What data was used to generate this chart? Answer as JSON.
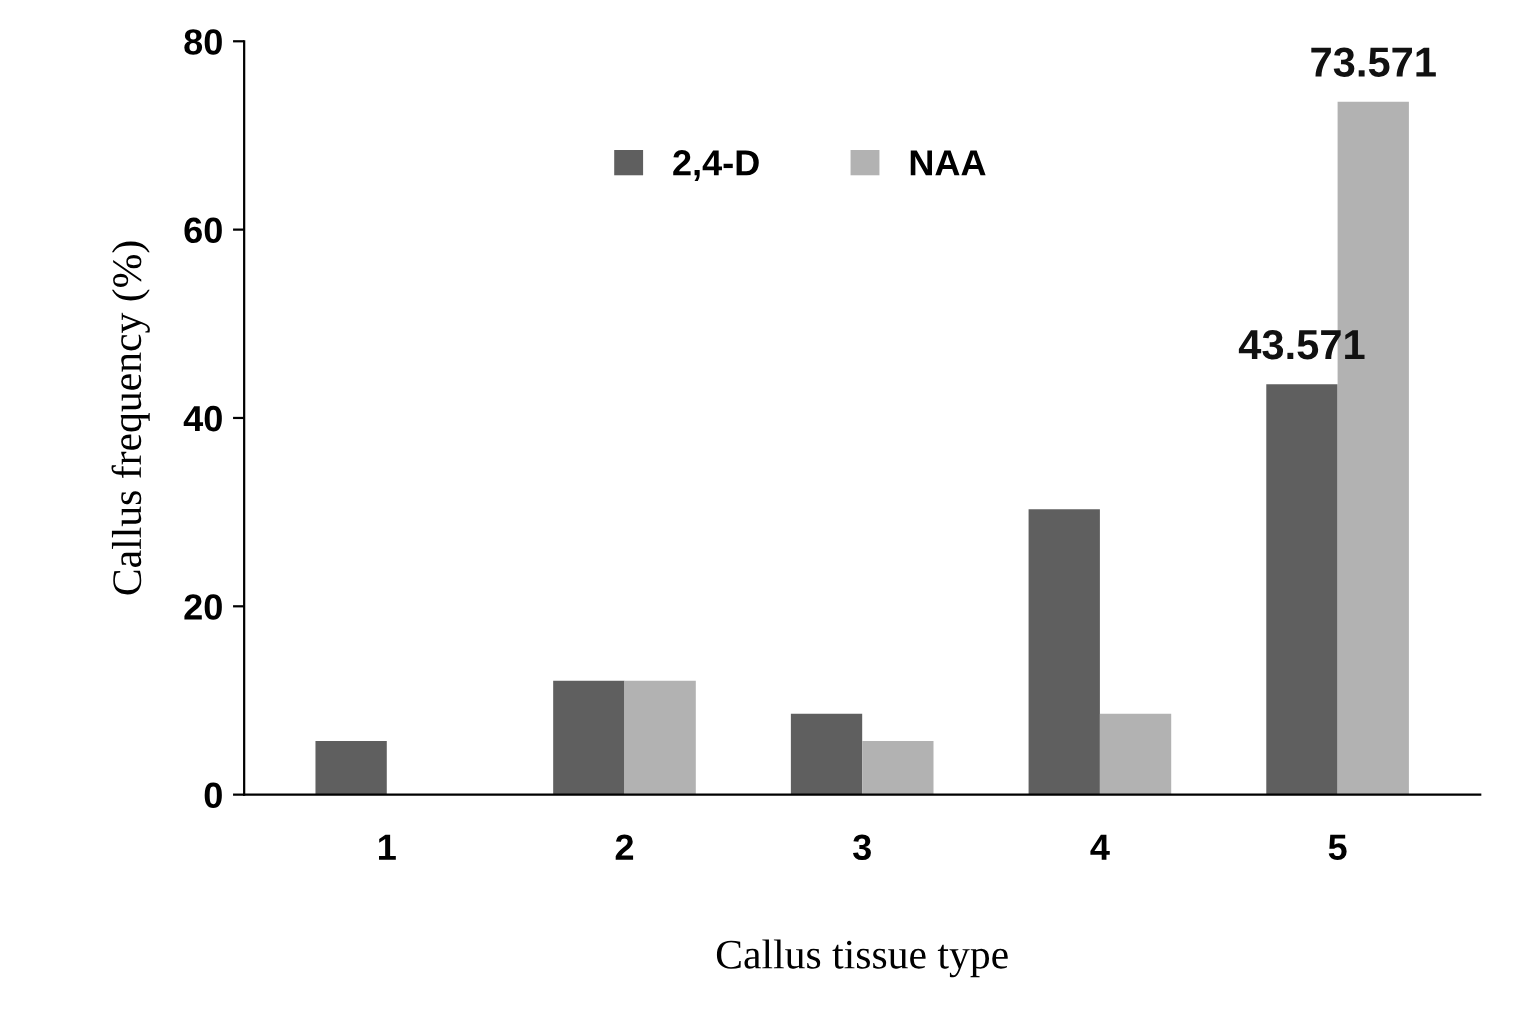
{
  "chart_data": {
    "type": "bar",
    "xlabel": "Callus tissue type",
    "ylabel": "Callus frequency (%)",
    "categories": [
      "1",
      "2",
      "3",
      "4",
      "5"
    ],
    "series": [
      {
        "name": "2,4-D",
        "color": "#5f5f5f",
        "values": [
          5.7,
          12.1,
          8.6,
          30.3,
          43.571
        ],
        "value_labels": [
          null,
          null,
          null,
          null,
          "43.571"
        ]
      },
      {
        "name": "NAA",
        "color": "#b2b2b2",
        "values": [
          0,
          12.1,
          5.7,
          8.6,
          73.571
        ],
        "value_labels": [
          null,
          null,
          null,
          null,
          "73.571"
        ]
      }
    ],
    "ylim": [
      0,
      80
    ],
    "yticks": [
      0,
      20,
      40,
      60,
      80
    ],
    "grid": false,
    "legend": "top"
  }
}
